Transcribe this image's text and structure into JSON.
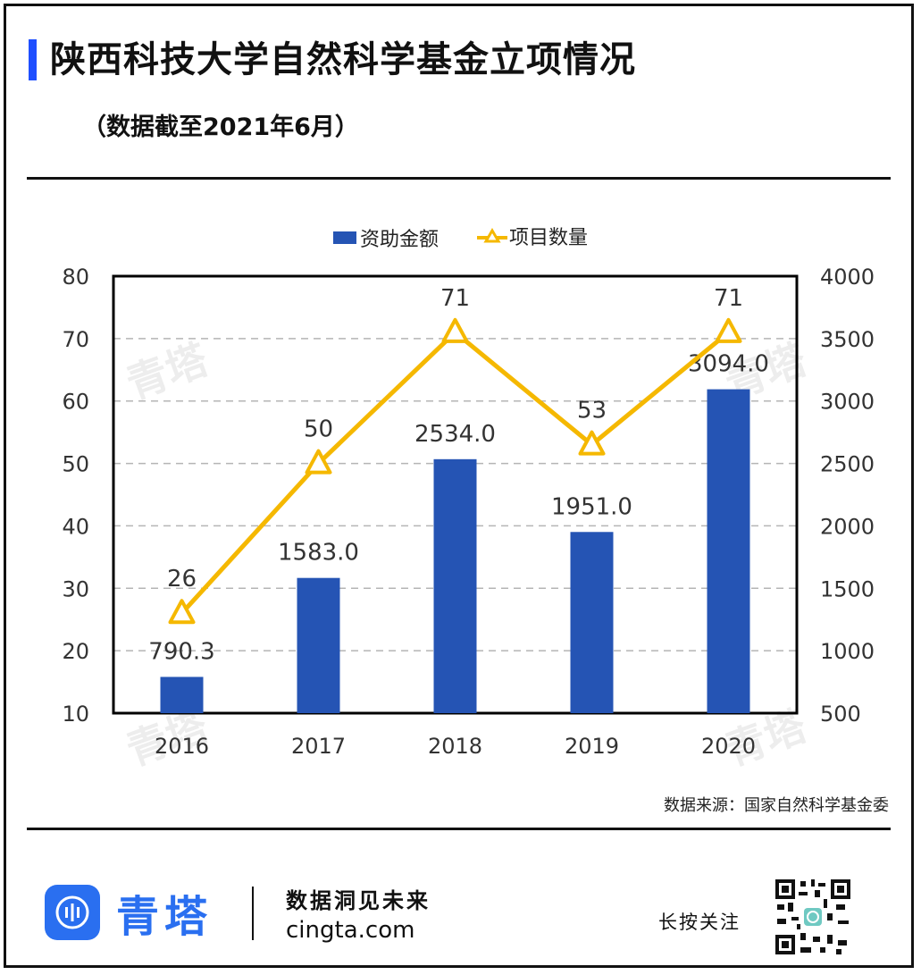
{
  "header": {
    "title": "陕西科技大学自然科学基金立项情况",
    "subtitle": "（数据截至2021年6月）"
  },
  "legend": {
    "bar_label": "资助金额",
    "line_label": "项目数量"
  },
  "chart_data": {
    "type": "bar",
    "categories": [
      "2016",
      "2017",
      "2018",
      "2019",
      "2020"
    ],
    "series": [
      {
        "name": "资助金额",
        "kind": "bar",
        "axis": "right",
        "values": [
          790.3,
          1583.0,
          2534.0,
          1951.0,
          3094.0
        ],
        "labels": [
          "790.3",
          "1583.0",
          "2534.0",
          "1951.0",
          "3094.0"
        ],
        "color": "#2554b4"
      },
      {
        "name": "项目数量",
        "kind": "line",
        "axis": "left",
        "values": [
          26,
          50,
          71,
          53,
          71
        ],
        "labels": [
          "26",
          "50",
          "71",
          "53",
          "71"
        ],
        "color": "#f5b800"
      }
    ],
    "y_left": {
      "min": 10,
      "max": 80,
      "ticks": [
        "10",
        "20",
        "30",
        "40",
        "50",
        "60",
        "70",
        "80"
      ]
    },
    "y_right": {
      "min": 500,
      "max": 4000,
      "ticks": [
        "500",
        "1000",
        "1500",
        "2000",
        "2500",
        "3000",
        "3500",
        "4000"
      ]
    },
    "grid": true,
    "legend_position": "top-center"
  },
  "footer": {
    "source": "数据来源：国家自然科学基金委",
    "brand": "青塔",
    "slogan": "数据洞见未来",
    "site": "cingta.com",
    "follow": "长按关注"
  },
  "watermark": "青塔",
  "colors": {
    "accent": "#1f4fff",
    "brand": "#2a6ff0",
    "bar": "#2554b4",
    "line": "#f5b800"
  }
}
